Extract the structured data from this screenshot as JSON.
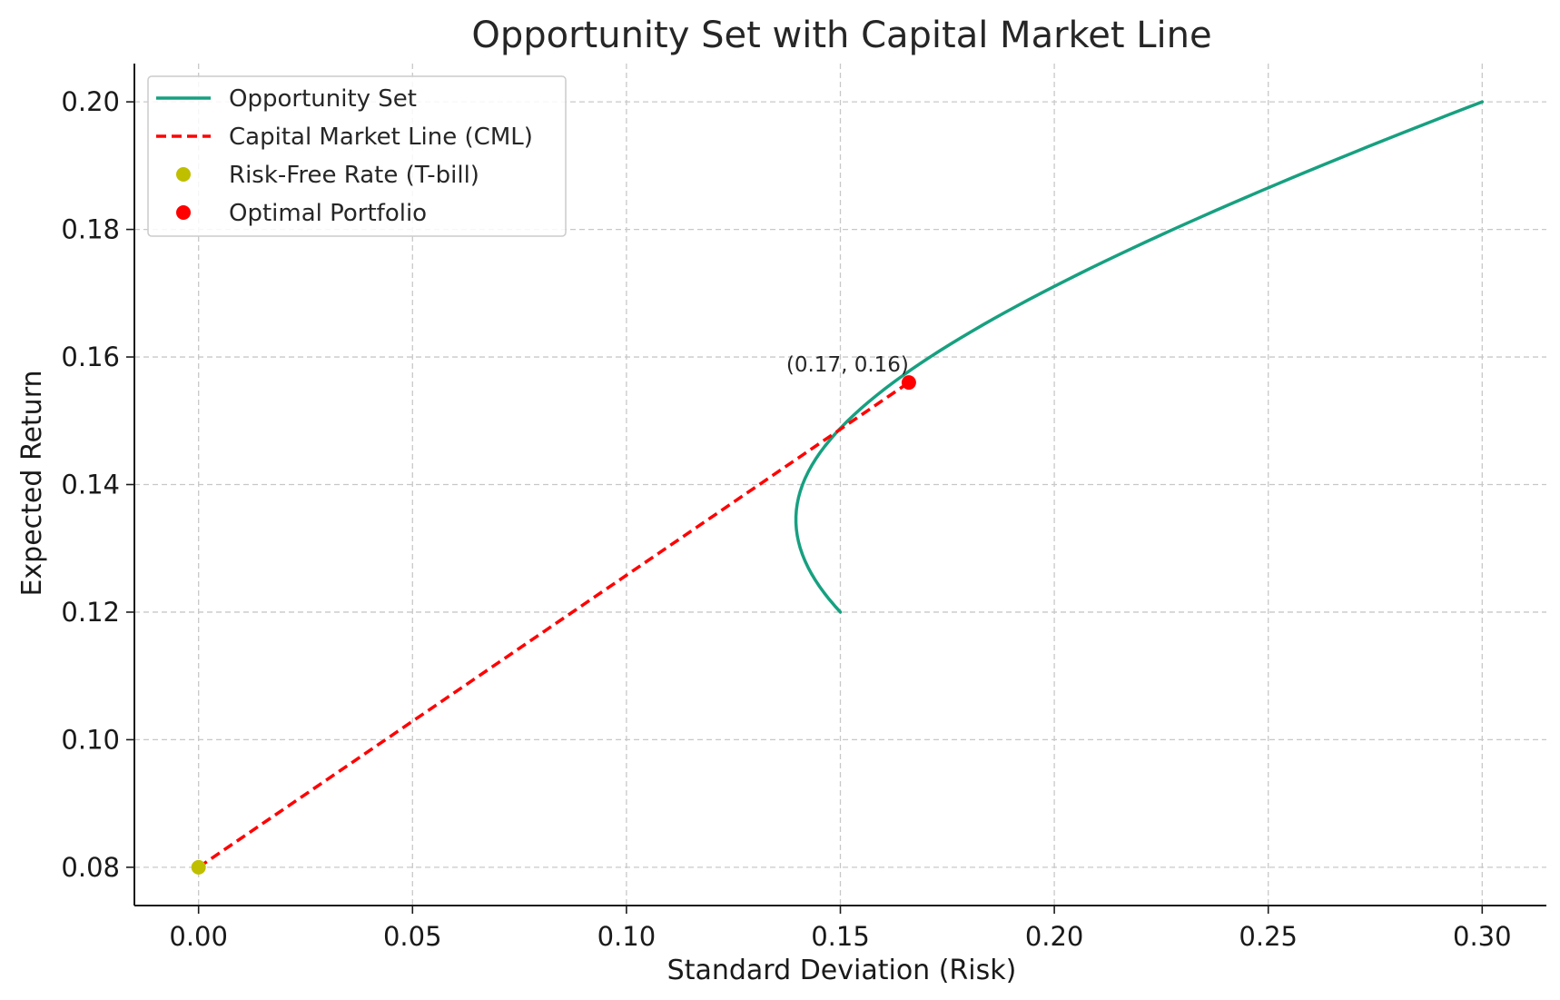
{
  "chart_data": {
    "type": "line",
    "title": "Opportunity Set with Capital Market Line",
    "xlabel": "Standard Deviation (Risk)",
    "ylabel": "Expected Return",
    "xlim": [
      -0.015,
      0.315
    ],
    "ylim": [
      0.074,
      0.206
    ],
    "xticks": [
      0.0,
      0.05,
      0.1,
      0.15,
      0.2,
      0.25,
      0.3
    ],
    "xtick_labels": [
      "0.00",
      "0.05",
      "0.10",
      "0.15",
      "0.20",
      "0.25",
      "0.30"
    ],
    "yticks": [
      0.08,
      0.1,
      0.12,
      0.14,
      0.16,
      0.18,
      0.2
    ],
    "ytick_labels": [
      "0.08",
      "0.10",
      "0.12",
      "0.14",
      "0.16",
      "0.18",
      "0.20"
    ],
    "grid": true,
    "legend_position": "top-left",
    "series": [
      {
        "name": "Opportunity Set",
        "style": "solid",
        "color": "#17a080",
        "x": [
          0.15,
          0.1464,
          0.1432,
          0.141,
          0.1398,
          0.1396,
          0.1404,
          0.1421,
          0.1448,
          0.1483,
          0.1525,
          0.1572,
          0.1625,
          0.1681,
          0.1741,
          0.1804,
          0.187,
          0.1938,
          0.2008,
          0.208,
          0.2154,
          0.2229,
          0.2306,
          0.2384,
          0.2462,
          0.2541,
          0.2621,
          0.2702,
          0.2784,
          0.2865,
          0.2947,
          0.3
        ],
        "y": [
          0.12,
          0.124,
          0.128,
          0.132,
          0.135,
          0.136,
          0.139,
          0.142,
          0.145,
          0.148,
          0.151,
          0.154,
          0.157,
          0.16,
          0.163,
          0.166,
          0.169,
          0.172,
          0.175,
          0.178,
          0.181,
          0.184,
          0.187,
          0.19,
          0.193,
          0.196,
          0.199,
          0.202,
          0.205,
          0.208,
          0.211,
          0.2
        ]
      },
      {
        "name": "Capital Market Line (CML)",
        "style": "dashed",
        "color": "#ff0000",
        "x": [
          0.0,
          0.166
        ],
        "y": [
          0.08,
          0.156
        ]
      }
    ],
    "points": [
      {
        "name": "Risk-Free Rate (T-bill)",
        "x": 0.0,
        "y": 0.08,
        "color": "#bfbf00"
      },
      {
        "name": "Optimal Portfolio",
        "x": 0.166,
        "y": 0.156,
        "color": "#ff0000"
      }
    ],
    "annotations": [
      {
        "text": "(0.17, 0.16)",
        "x": 0.166,
        "y": 0.156
      }
    ]
  }
}
